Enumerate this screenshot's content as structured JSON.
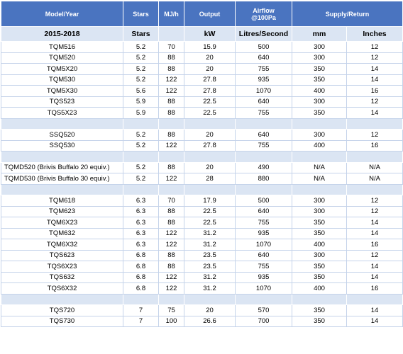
{
  "header": {
    "model": "Model/Year",
    "stars": "Stars",
    "mj": "MJ/h",
    "output": "Output",
    "airflow_line1": "Airflow",
    "airflow_line2": "@100Pa",
    "supply_return": "Supply/Return"
  },
  "subheader": {
    "model": "2015-2018",
    "stars": "Stars",
    "output": "kW",
    "airflow": "Litres/Second",
    "supply": "mm",
    "return": "Inches"
  },
  "groups": [
    [
      [
        "TQM516",
        5.2,
        70,
        15.9,
        500,
        300,
        12
      ],
      [
        "TQM520",
        5.2,
        88,
        20,
        640,
        300,
        12
      ],
      [
        "TQM5X20",
        5.2,
        88,
        20,
        755,
        350,
        14
      ],
      [
        "TQM530",
        5.2,
        122,
        27.8,
        935,
        350,
        14
      ],
      [
        "TQM5X30",
        5.6,
        122,
        27.8,
        1070,
        400,
        16
      ],
      [
        "TQS523",
        5.9,
        88,
        22.5,
        640,
        300,
        12
      ],
      [
        "TQS5X23",
        5.9,
        88,
        22.5,
        755,
        350,
        14
      ]
    ],
    [
      [
        "SSQ520",
        5.2,
        88,
        20,
        640,
        300,
        12
      ],
      [
        "SSQ530",
        5.2,
        122,
        27.8,
        755,
        400,
        16
      ]
    ],
    [
      [
        "TQMD520 (Brivis Buffalo 20 equiv.)",
        5.2,
        88,
        20,
        490,
        "N/A",
        "N/A"
      ],
      [
        "TQMD530 (Brivis Buffalo 30 equiv.)",
        5.2,
        122,
        28,
        880,
        "N/A",
        "N/A"
      ]
    ],
    [
      [
        "TQM618",
        6.3,
        70,
        17.9,
        500,
        300,
        12
      ],
      [
        "TQM623",
        6.3,
        88,
        22.5,
        640,
        300,
        12
      ],
      [
        "TQM6X23",
        6.3,
        88,
        22.5,
        755,
        350,
        14
      ],
      [
        "TQM632",
        6.3,
        122,
        31.2,
        935,
        350,
        14
      ],
      [
        "TQM6X32",
        6.3,
        122,
        31.2,
        1070,
        400,
        16
      ],
      [
        "TQS623",
        6.8,
        88,
        23.5,
        640,
        300,
        12
      ],
      [
        "TQS6X23",
        6.8,
        88,
        23.5,
        755,
        350,
        14
      ],
      [
        "TQS632",
        6.8,
        122,
        31.2,
        935,
        350,
        14
      ],
      [
        "TQS6X32",
        6.8,
        122,
        31.2,
        1070,
        400,
        16
      ]
    ],
    [
      [
        "TQS720",
        7,
        75,
        20,
        570,
        350,
        14
      ],
      [
        "TQS730",
        7,
        100,
        26.6,
        700,
        350,
        14
      ]
    ]
  ]
}
